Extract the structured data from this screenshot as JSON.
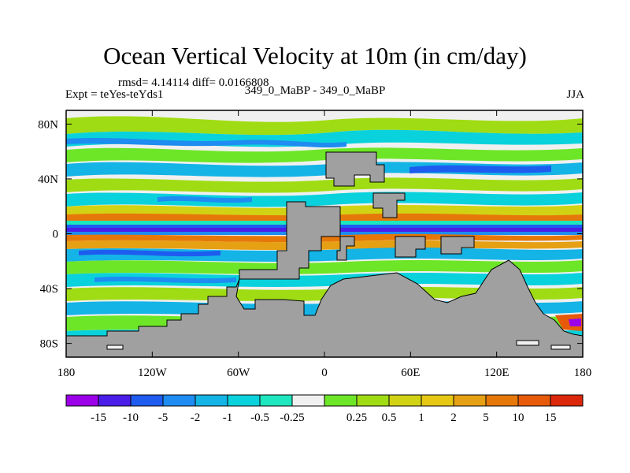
{
  "title": "Ocean Vertical Velocity at 10m (in cm/day)",
  "stats": "rmsd= 4.14114 diff= 0.0166808",
  "expt": "Expt = teYes-teYds1",
  "comparison": "349_0_MaBP - 349_0_MaBP",
  "season": "JJA",
  "map": {
    "lon_range": [
      -180,
      180
    ],
    "lat_range": [
      -90,
      90
    ],
    "lat_ticks": [
      {
        "value": 80,
        "label": "80N"
      },
      {
        "value": 40,
        "label": "40N"
      },
      {
        "value": 0,
        "label": "0"
      },
      {
        "value": -40,
        "label": "40S"
      },
      {
        "value": -80,
        "label": "80S"
      }
    ],
    "lon_ticks": [
      {
        "value": -180,
        "label": "180"
      },
      {
        "value": -120,
        "label": "120W"
      },
      {
        "value": -60,
        "label": "60W"
      },
      {
        "value": 0,
        "label": "0"
      },
      {
        "value": 60,
        "label": "60E"
      },
      {
        "value": 120,
        "label": "120E"
      },
      {
        "value": 180,
        "label": "180"
      }
    ],
    "land_color": "#a0a0a0"
  },
  "colorbar": {
    "colors": [
      "#9b00e8",
      "#4a1ee8",
      "#1e5cf0",
      "#1e8cf0",
      "#14b4e6",
      "#0ad2dc",
      "#1ee6be",
      "#f0f0f0",
      "#6ee628",
      "#a0dc14",
      "#d2d214",
      "#e6c814",
      "#e6a014",
      "#e6780a",
      "#e65a0a",
      "#dc280a"
    ],
    "labels": [
      "-15",
      "-10",
      "-5",
      "-2",
      "-1",
      "-0.5",
      "-0.25",
      "0.25",
      "0.5",
      "1",
      "2",
      "5",
      "10",
      "15"
    ]
  }
}
